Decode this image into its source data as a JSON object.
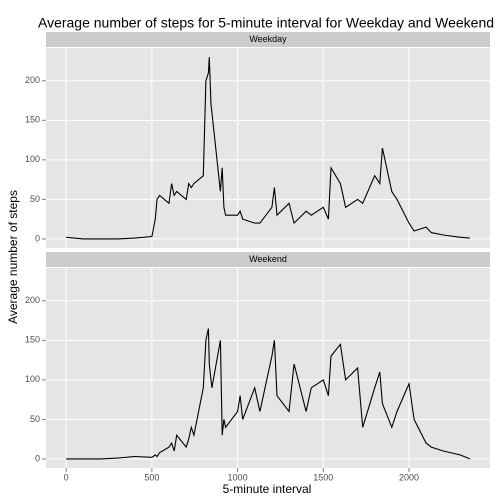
{
  "chart_data": {
    "type": "line",
    "title": "Average number of steps for 5-minute interval for Weekday and Weekend",
    "xlabel": "5-minute interval",
    "ylabel": "Average number of steps",
    "xlim": [
      -117.75,
      2472.75
    ],
    "xticks": [
      0,
      500,
      1000,
      1500,
      2000
    ],
    "ylim": [
      -11.5,
      241.5
    ],
    "yticks": [
      0,
      50,
      100,
      150,
      200
    ],
    "grid": true,
    "color": "#000000",
    "x": [
      0,
      100,
      200,
      300,
      400,
      500,
      520,
      530,
      545,
      600,
      615,
      630,
      645,
      700,
      715,
      730,
      745,
      800,
      815,
      830,
      835,
      845,
      850,
      900,
      910,
      920,
      930,
      1000,
      1015,
      1030,
      1100,
      1130,
      1200,
      1215,
      1230,
      1300,
      1330,
      1400,
      1430,
      1500,
      1530,
      1545,
      1600,
      1630,
      1700,
      1730,
      1800,
      1830,
      1845,
      1900,
      1930,
      2000,
      2030,
      2100,
      2130,
      2200,
      2300,
      2355
    ],
    "panels": [
      {
        "name": "Weekday",
        "values": [
          2,
          0,
          0,
          0,
          1,
          3,
          25,
          50,
          55,
          45,
          70,
          55,
          60,
          50,
          70,
          65,
          70,
          80,
          200,
          210,
          230,
          170,
          160,
          60,
          90,
          40,
          30,
          30,
          35,
          25,
          20,
          20,
          40,
          65,
          30,
          45,
          20,
          35,
          30,
          40,
          25,
          90,
          70,
          40,
          50,
          45,
          80,
          70,
          115,
          60,
          50,
          20,
          10,
          15,
          8,
          5,
          2,
          1
        ]
      },
      {
        "name": "Weekend",
        "values": [
          0,
          0,
          0,
          1,
          3,
          2,
          5,
          3,
          8,
          15,
          20,
          10,
          30,
          15,
          25,
          40,
          30,
          90,
          150,
          165,
          120,
          100,
          90,
          150,
          30,
          50,
          40,
          60,
          80,
          50,
          90,
          60,
          130,
          150,
          80,
          60,
          120,
          60,
          90,
          100,
          80,
          130,
          145,
          100,
          115,
          40,
          90,
          110,
          70,
          40,
          60,
          95,
          50,
          20,
          15,
          10,
          5,
          0
        ]
      }
    ]
  }
}
